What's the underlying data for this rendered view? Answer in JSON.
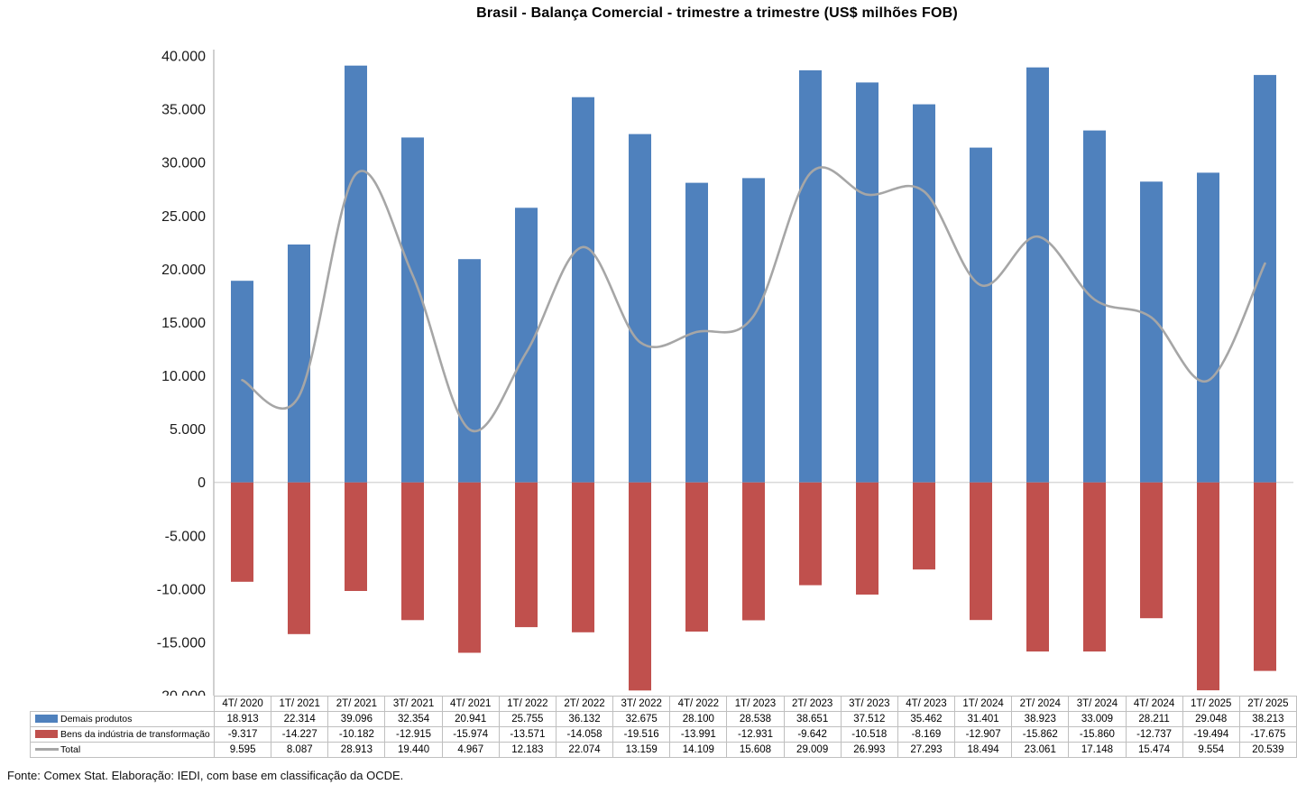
{
  "title": "Brasil - Balança Comercial - trimestre a trimestre (US$ milhões FOB)",
  "source_note": "Fonte: Comex Stat. Elaboração: IEDI, com base em classificação da OCDE.",
  "colors": {
    "demais_produtos": "#4F81BD",
    "bens_industria": "#C0504D",
    "total_line": "#A6A6A6",
    "gridline": "#D9D9D9",
    "axis_line": "#C0C0C0",
    "table_border": "#BFBFBF",
    "text": "#000000"
  },
  "chart_data": {
    "type": "bar+line combo",
    "title": "Brasil - Balança Comercial - trimestre a trimestre (US$ milhões FOB)",
    "categories": [
      "4T/ 2020",
      "1T/ 2021",
      "2T/ 2021",
      "3T/ 2021",
      "4T/ 2021",
      "1T/ 2022",
      "2T/ 2022",
      "3T/ 2022",
      "4T/ 2022",
      "1T/ 2023",
      "2T/ 2023",
      "3T/ 2023",
      "4T/ 2023",
      "1T/ 2024",
      "2T/ 2024",
      "3T/ 2024",
      "4T/ 2024",
      "1T/ 2025",
      "2T/ 2025"
    ],
    "series": [
      {
        "name": "Demais produtos",
        "type": "bar",
        "color": "#4F81BD",
        "values": [
          18913,
          22314,
          39096,
          32354,
          20941,
          25755,
          36132,
          32675,
          28100,
          28538,
          38651,
          37512,
          35462,
          31401,
          38923,
          33009,
          28211,
          29048,
          38213
        ]
      },
      {
        "name": "Bens da indústria de transformação",
        "type": "bar",
        "color": "#C0504D",
        "values": [
          -9317,
          -14227,
          -10182,
          -12915,
          -15974,
          -13571,
          -14058,
          -19516,
          -13991,
          -12931,
          -9642,
          -10518,
          -8169,
          -12907,
          -15862,
          -15860,
          -12737,
          -19494,
          -17675
        ]
      },
      {
        "name": "Total",
        "type": "line",
        "color": "#A6A6A6",
        "values": [
          9595,
          8087,
          28913,
          19440,
          4967,
          12183,
          22074,
          13159,
          14109,
          15608,
          29009,
          26993,
          27293,
          18494,
          23061,
          17148,
          15474,
          9554,
          20539
        ]
      }
    ],
    "xlabel": "",
    "ylabel": "",
    "ylim": [
      -20000,
      40000
    ],
    "ytick_step": 5000,
    "grid": "zero-line-only",
    "legend_position": "table-left",
    "number_format": "thousands separated by dot (pt-BR)"
  }
}
